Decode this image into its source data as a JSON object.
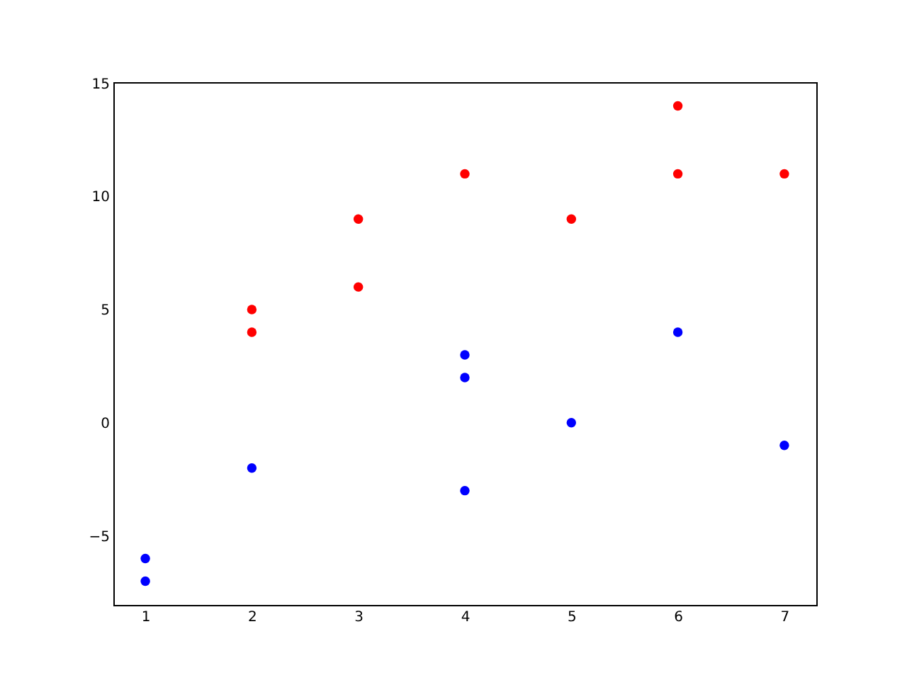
{
  "chart_data": {
    "type": "scatter",
    "marker": "circle",
    "grid": false,
    "xlim": [
      0.7,
      7.3
    ],
    "xticks": [
      1,
      2,
      3,
      4,
      5,
      6,
      7
    ],
    "ylim": [
      -8.05,
      15.05
    ],
    "yticks": [
      {
        "value": -5,
        "label": "−5"
      },
      0,
      5,
      10,
      15
    ],
    "series": [
      {
        "color": "#ff0000",
        "x": [
          2,
          2,
          3,
          3,
          4,
          5,
          6,
          6,
          7
        ],
        "values": [
          5,
          4,
          9,
          6,
          11,
          9,
          14,
          11,
          11
        ]
      },
      {
        "color": "#0000ff",
        "x": [
          1,
          1,
          2,
          4,
          4,
          4,
          5,
          6,
          7
        ],
        "values": [
          -6,
          -7,
          -2,
          3,
          2,
          -3,
          0,
          4,
          -1
        ]
      }
    ]
  }
}
